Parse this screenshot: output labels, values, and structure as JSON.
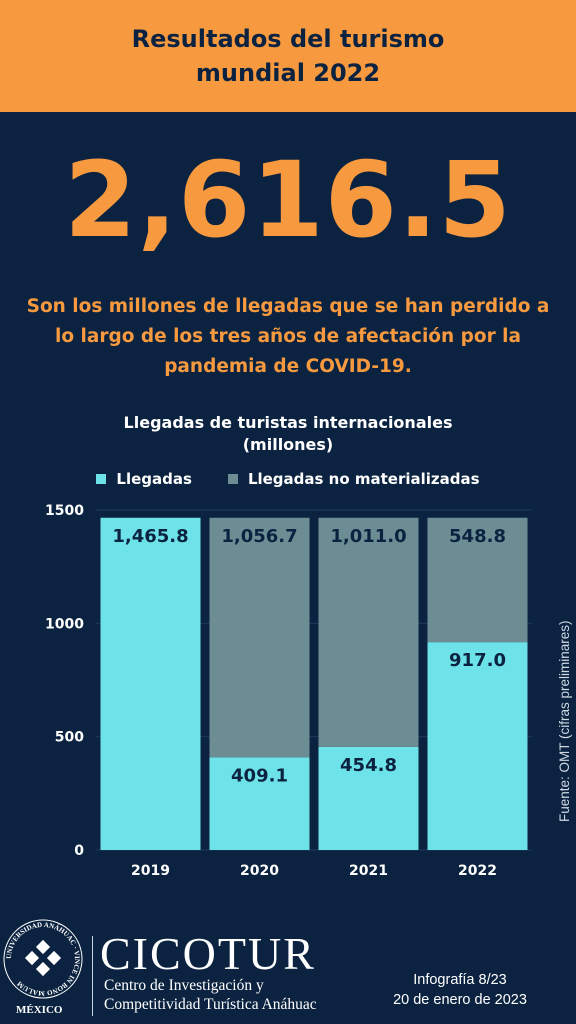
{
  "header": {
    "title": "Resultados del turismo mundial 2022"
  },
  "highlight": {
    "number": "2,616.5",
    "description": "Son los millones de llegadas que se han perdido a lo largo de los tres años de afectación por la pandemia de COVID-19."
  },
  "colors": {
    "orange": "#f7993f",
    "navy": "#0b2340",
    "llegadas": "#6de3e9",
    "no_materializadas": "#6d8d95"
  },
  "chart_data": {
    "type": "bar",
    "stacked": true,
    "title": "Llegadas de turistas internacionales",
    "subtitle": "(millones)",
    "categories": [
      "2019",
      "2020",
      "2021",
      "2022"
    ],
    "series": [
      {
        "name": "Llegadas",
        "values": [
          1465.8,
          409.1,
          454.8,
          917.0
        ],
        "labels": [
          "1,465.8",
          "409.1",
          "454.8",
          "917.0"
        ]
      },
      {
        "name": "Llegadas no materializadas",
        "values": [
          0,
          1056.7,
          1011.0,
          548.8
        ],
        "labels": [
          "",
          "1,056.7",
          "1,011.0",
          "548.8"
        ]
      }
    ],
    "yticks": [
      0,
      500,
      1000,
      1500
    ],
    "ylim": [
      0,
      1500
    ],
    "grid": true,
    "legend": "top-center"
  },
  "source": "Fuente: OMT (cifras preliminares)",
  "branding": {
    "seal_text": "UNIVERSIDAD ANÁHUAC · VINCE IN BONO MALUM",
    "seal_country": "MÉXICO",
    "name": "CICOTUR",
    "line1": "Centro de Investigación y",
    "line2": "Competitividad Turística Anáhuac"
  },
  "footer": {
    "infografia": "Infografía 8/23",
    "date": "20 de enero de 2023"
  }
}
